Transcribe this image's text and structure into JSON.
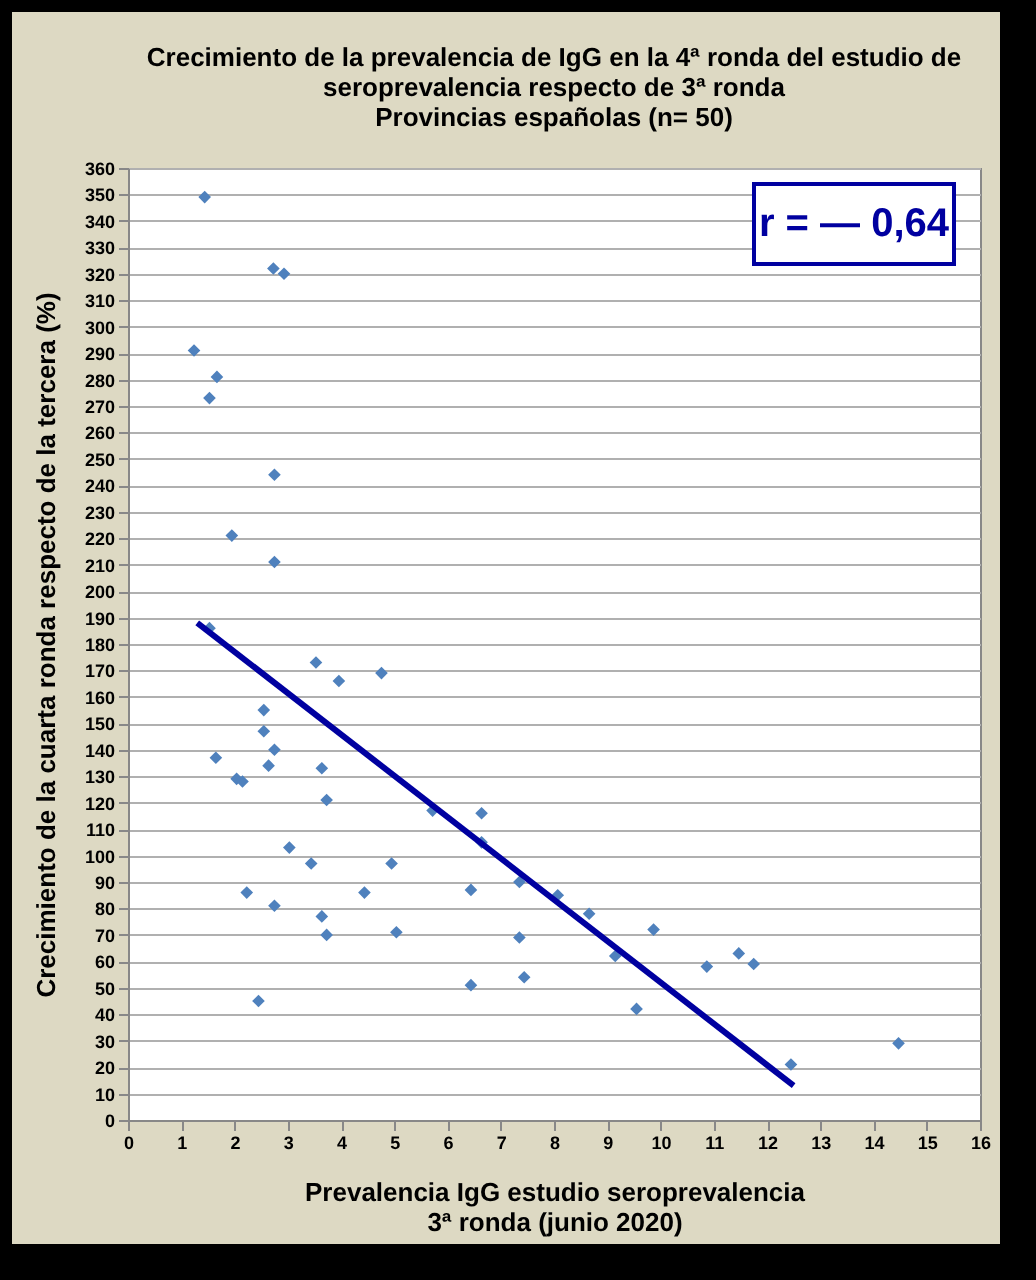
{
  "chart_data": {
    "type": "scatter",
    "title": "Crecimiento de la prevalencia de IgG en la 4ª ronda del estudio de seroprevalencia respecto de 3ª ronda",
    "subtitle": "Provincias españolas (n= 50)",
    "xlabel": "Prevalencia IgG estudio seroprevalencia 3ª ronda (junio 2020)",
    "ylabel": "Crecimiento de la cuarta ronda respecto de la tercera (%)",
    "annotations": [
      "r = — 0,64"
    ],
    "xlim": [
      0,
      16
    ],
    "xticks": [
      0,
      1,
      2,
      3,
      4,
      5,
      6,
      7,
      8,
      9,
      10,
      11,
      12,
      13,
      14,
      15,
      16
    ],
    "ylim": [
      0,
      360
    ],
    "yticks": [
      0,
      10,
      20,
      30,
      40,
      50,
      60,
      70,
      80,
      90,
      100,
      110,
      120,
      130,
      140,
      150,
      160,
      170,
      180,
      190,
      200,
      210,
      220,
      230,
      240,
      250,
      260,
      270,
      280,
      290,
      300,
      310,
      320,
      330,
      340,
      350,
      360
    ],
    "grid": "y",
    "series": [
      {
        "marker": "diamond",
        "color": "#4f81bd",
        "x": [
          1.44,
          2.73,
          2.93,
          1.24,
          1.67,
          1.53,
          2.75,
          1.95,
          2.75,
          1.53,
          3.53,
          3.96,
          4.76,
          2.55,
          2.55,
          2.75,
          1.65,
          2.64,
          3.64,
          2.04,
          2.15,
          3.73,
          5.72,
          6.64,
          6.64,
          3.03,
          3.44,
          4.95,
          2.23,
          4.44,
          6.44,
          7.35,
          2.75,
          3.64,
          3.73,
          5.04,
          7.35,
          7.44,
          6.44,
          2.45,
          8.07,
          8.66,
          9.87,
          9.15,
          10.87,
          11.47,
          11.75,
          9.55,
          12.45,
          14.47
        ],
        "values": [
          349,
          322,
          320,
          291,
          281,
          273,
          244,
          221,
          211,
          186,
          173,
          166,
          169,
          155,
          147,
          140,
          137,
          134,
          133,
          129,
          128,
          121,
          117,
          116,
          105,
          103,
          97,
          97,
          86,
          86,
          87,
          90,
          81,
          77,
          70,
          71,
          69,
          54,
          51,
          45,
          85,
          78,
          72,
          62,
          58,
          63,
          59,
          42,
          21,
          29
        ]
      },
      {
        "type": "line",
        "color": "#0000a0",
        "x": [
          1.3,
          12.5
        ],
        "values": [
          188,
          13
        ]
      }
    ]
  }
}
